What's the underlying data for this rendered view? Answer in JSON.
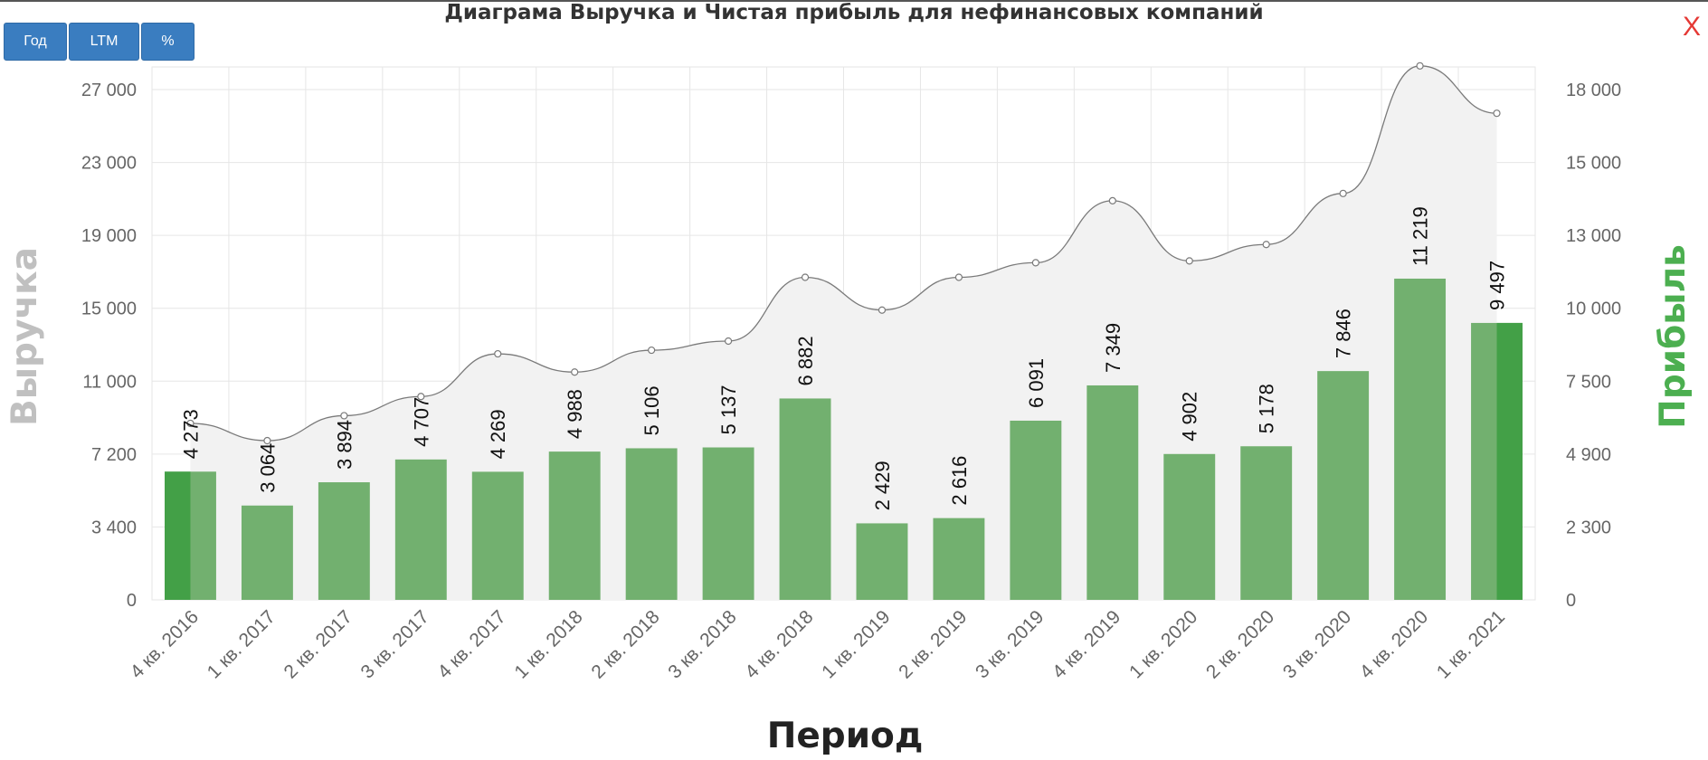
{
  "header": {
    "title": "Диаграма Выручка и Чистая прибыль для нефинансовых компаний",
    "buttons": [
      "Год",
      "LTM",
      "%"
    ],
    "close_label": "X"
  },
  "colors": {
    "bar": "#72b06f",
    "bar_highlight": "#43a047",
    "line": "#7a7a7a",
    "area": "#f2f2f2",
    "grid": "#e6e6e6",
    "axis_text": "#666666",
    "left_title": "#c0c0c0",
    "right_title": "#4caf50"
  },
  "chart_data": {
    "type": "bar",
    "title": "Диаграма Выручка и Чистая прибыль для нефинансовых компаний",
    "xlabel": "Период",
    "ylabel_left": "Выручка",
    "ylabel_right": "Прибыль",
    "categories": [
      "4 кв. 2016",
      "1 кв. 2017",
      "2 кв. 2017",
      "3 кв. 2017",
      "4 кв. 2017",
      "1 кв. 2018",
      "2 кв. 2018",
      "3 кв. 2018",
      "4 кв. 2018",
      "1 кв. 2019",
      "2 кв. 2019",
      "3 кв. 2019",
      "4 кв. 2019",
      "1 кв. 2020",
      "2 кв. 2020",
      "3 кв. 2020",
      "4 кв. 2020",
      "1 кв. 2021"
    ],
    "left_axis": {
      "ticks": [
        0,
        3400,
        7200,
        11000,
        15000,
        19000,
        23000,
        27000
      ],
      "tick_labels": [
        "0",
        "3 400",
        "7 200",
        "11 000",
        "15 000",
        "19 000",
        "23 000",
        "27 000"
      ]
    },
    "right_axis": {
      "ticks": [
        0,
        2300,
        4900,
        7500,
        10000,
        13000,
        15000,
        18000
      ],
      "tick_labels": [
        "0",
        "2 300",
        "4 900",
        "7 500",
        "10 000",
        "13 000",
        "15 000",
        "18 000"
      ]
    },
    "series": [
      {
        "name": "Выручка",
        "type": "area",
        "axis": "left",
        "values": [
          8800,
          7900,
          9200,
          10200,
          12500,
          11500,
          12700,
          13200,
          16700,
          14900,
          16700,
          17500,
          20900,
          17600,
          18500,
          21300,
          28300,
          25700
        ]
      },
      {
        "name": "Прибыль",
        "type": "bar",
        "axis": "right",
        "values": [
          4273,
          3064,
          3894,
          4707,
          4269,
          4988,
          5106,
          5137,
          6882,
          2429,
          2616,
          6091,
          7349,
          4902,
          5178,
          7846,
          11219,
          9497
        ],
        "labels": [
          "4 273",
          "3 064",
          "3 894",
          "4 707",
          "4 269",
          "4 988",
          "5 106",
          "5 137",
          "6 882",
          "2 429",
          "2 616",
          "6 091",
          "7 349",
          "4 902",
          "5 178",
          "7 846",
          "11 219",
          "9 497"
        ]
      }
    ],
    "highlighted": [
      "4 кв. 2016",
      "1 кв. 2021"
    ],
    "grid": true
  }
}
